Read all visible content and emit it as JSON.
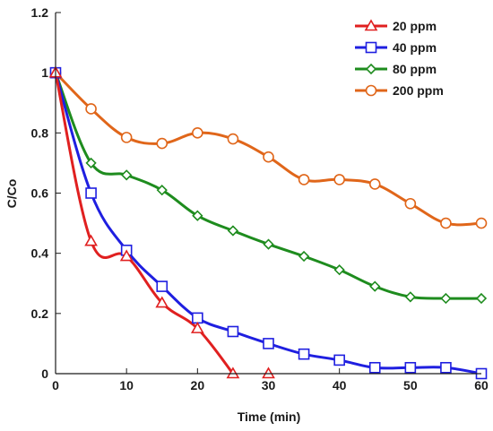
{
  "chart_data": {
    "type": "line",
    "xlabel": "Time (min)",
    "ylabel": "C/Co",
    "xlim": [
      0,
      60
    ],
    "ylim": [
      0,
      1.2
    ],
    "x_ticks": [
      0,
      10,
      20,
      30,
      40,
      50,
      60
    ],
    "y_ticks": [
      0,
      0.2,
      0.4,
      0.6,
      0.8,
      1,
      1.2
    ],
    "grid": false,
    "legend_position": "top-right",
    "series": [
      {
        "name": "20 ppm",
        "color": "#e02020",
        "marker": "triangle",
        "points": [
          [
            0,
            1.0
          ],
          [
            5,
            0.44
          ],
          [
            10,
            0.39
          ],
          [
            15,
            0.235
          ],
          [
            20,
            0.15
          ],
          [
            25,
            0.0
          ],
          [
            30,
            0.0
          ]
        ],
        "line_end_index": 5
      },
      {
        "name": "40 ppm",
        "color": "#1f1fe0",
        "marker": "square",
        "points": [
          [
            0,
            1.0
          ],
          [
            5,
            0.6
          ],
          [
            10,
            0.41
          ],
          [
            15,
            0.29
          ],
          [
            20,
            0.185
          ],
          [
            25,
            0.14
          ],
          [
            30,
            0.1
          ],
          [
            35,
            0.065
          ],
          [
            40,
            0.045
          ],
          [
            45,
            0.02
          ],
          [
            50,
            0.02
          ],
          [
            55,
            0.02
          ],
          [
            60,
            0.0
          ]
        ]
      },
      {
        "name": "80 ppm",
        "color": "#1e8c1e",
        "marker": "diamond",
        "points": [
          [
            0,
            1.0
          ],
          [
            5,
            0.7
          ],
          [
            10,
            0.66
          ],
          [
            15,
            0.61
          ],
          [
            20,
            0.525
          ],
          [
            25,
            0.475
          ],
          [
            30,
            0.43
          ],
          [
            35,
            0.39
          ],
          [
            40,
            0.345
          ],
          [
            45,
            0.29
          ],
          [
            50,
            0.255
          ],
          [
            55,
            0.25
          ],
          [
            60,
            0.25
          ]
        ]
      },
      {
        "name": "200 ppm",
        "color": "#e0661a",
        "marker": "circle",
        "points": [
          [
            0,
            1.0
          ],
          [
            5,
            0.88
          ],
          [
            10,
            0.785
          ],
          [
            15,
            0.765
          ],
          [
            20,
            0.8
          ],
          [
            25,
            0.78
          ],
          [
            30,
            0.72
          ],
          [
            35,
            0.645
          ],
          [
            40,
            0.645
          ],
          [
            45,
            0.63
          ],
          [
            50,
            0.565
          ],
          [
            55,
            0.5
          ],
          [
            60,
            0.5
          ]
        ]
      }
    ]
  }
}
